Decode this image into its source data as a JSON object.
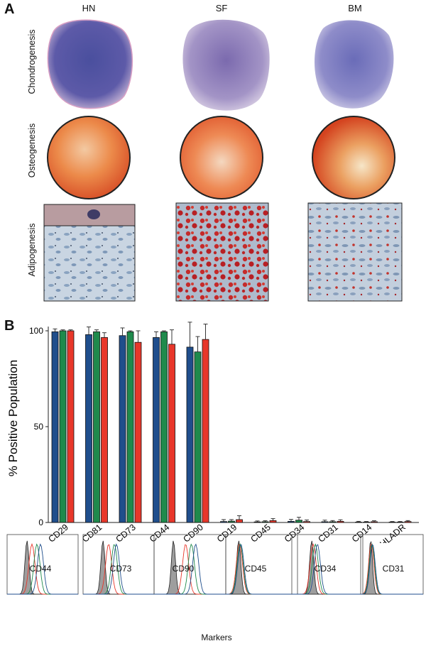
{
  "panel_a": {
    "letter": "A",
    "columns": [
      "HN",
      "SF",
      "BM"
    ],
    "rows": [
      "Chondrogenesis",
      "Osteogenesis",
      "Adipogenesis"
    ]
  },
  "panel_b": {
    "letter": "B",
    "histogram_markers": [
      "CD44",
      "CD73",
      "CD90",
      "CD45",
      "CD34",
      "CD31"
    ],
    "xlabel_bottom": "Markers"
  },
  "colors": {
    "series1": "#1f4e8c",
    "series2": "#1f8a4c",
    "series3": "#e8372a"
  },
  "chart_data": {
    "type": "bar",
    "categories": [
      "CD29",
      "CD81",
      "CD73",
      "CD44",
      "CD90",
      "CD19",
      "CD45",
      "CD34",
      "CD31",
      "CD14",
      "HLADR"
    ],
    "series": [
      {
        "values": [
          99.5,
          98,
          97.5,
          96.5,
          91.5,
          0.5,
          0.3,
          0.6,
          0.4,
          0.2,
          0.2
        ],
        "errors": [
          1.5,
          4,
          4,
          3,
          13,
          1,
          0.5,
          1,
          0.8,
          0.4,
          0.3
        ]
      },
      {
        "values": [
          100,
          99.5,
          99.5,
          99.5,
          89,
          0.7,
          0.4,
          1.2,
          0.4,
          0.2,
          0.2
        ],
        "errors": [
          0.5,
          1,
          0.5,
          0.5,
          8,
          0.8,
          0.5,
          1.5,
          0.6,
          0.3,
          0.3
        ]
      },
      {
        "values": [
          100,
          96.5,
          94,
          93,
          95.5,
          1.5,
          1,
          0.5,
          0.6,
          0.4,
          0.5
        ],
        "errors": [
          0.5,
          2.5,
          6,
          7.5,
          8,
          2,
          1,
          0.8,
          0.8,
          0.5,
          0.5
        ]
      }
    ],
    "ylabel": "% Positive Population",
    "yticks": [
      0,
      50,
      100
    ],
    "ylim": [
      0,
      100
    ]
  }
}
